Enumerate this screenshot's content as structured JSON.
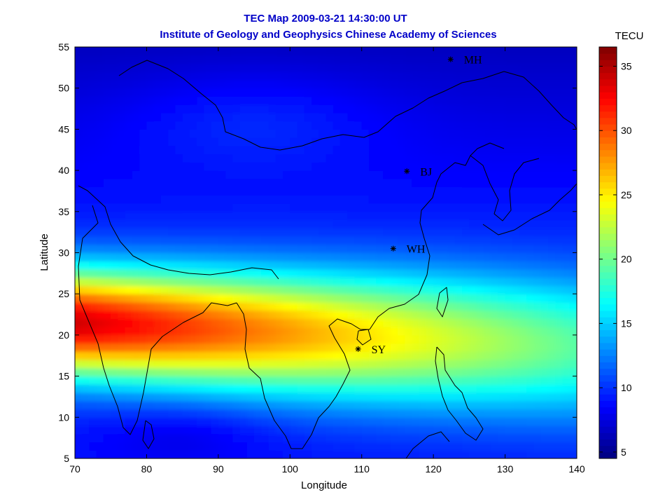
{
  "title_line1": "TEC Map 2009-03-21 14:30:00 UT",
  "title_line2": "Institute of Geology and Geophysics Chinese Academy of Sciences",
  "colors": {
    "title": "#0000c8"
  },
  "chart_data": {
    "type": "heatmap",
    "xlabel": "Longitude",
    "ylabel": "Latitude",
    "xlim": [
      70,
      140
    ],
    "ylim": [
      5,
      55
    ],
    "xticks": [
      70,
      80,
      90,
      100,
      110,
      120,
      130,
      140
    ],
    "yticks": [
      5,
      10,
      15,
      20,
      25,
      30,
      35,
      40,
      45,
      50,
      55
    ],
    "colorbar": {
      "label": "TECU",
      "range": [
        4.5,
        36.5
      ],
      "ticks": [
        5,
        10,
        15,
        20,
        25,
        30,
        35
      ],
      "colormap": "jet"
    },
    "stations": [
      {
        "name": "MH",
        "lon": 122.4,
        "lat": 53.5
      },
      {
        "name": "BJ",
        "lon": 116.3,
        "lat": 39.9
      },
      {
        "name": "WH",
        "lon": 114.4,
        "lat": 30.5
      },
      {
        "name": "SY",
        "lon": 109.5,
        "lat": 18.3
      }
    ]
  }
}
